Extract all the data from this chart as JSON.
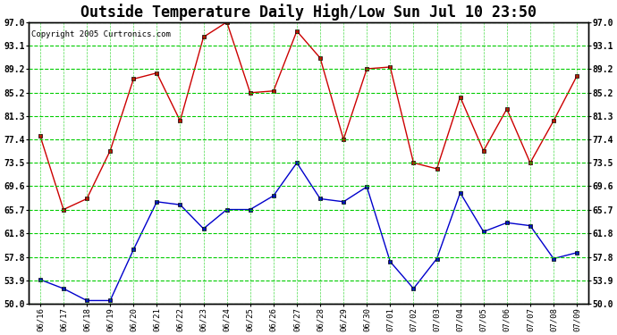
{
  "title": "Outside Temperature Daily High/Low Sun Jul 10 23:50",
  "copyright": "Copyright 2005 Curtronics.com",
  "x_labels": [
    "06/16",
    "06/17",
    "06/18",
    "06/19",
    "06/20",
    "06/21",
    "06/22",
    "06/23",
    "06/24",
    "06/25",
    "06/26",
    "06/27",
    "06/28",
    "06/29",
    "06/30",
    "07/01",
    "07/02",
    "07/03",
    "07/04",
    "07/05",
    "07/06",
    "07/07",
    "07/08",
    "07/09"
  ],
  "high_temps": [
    78.0,
    65.7,
    67.5,
    75.5,
    87.5,
    88.5,
    80.5,
    94.5,
    97.0,
    85.2,
    85.5,
    95.5,
    91.0,
    77.4,
    89.2,
    89.5,
    73.5,
    72.5,
    84.5,
    75.5,
    82.5,
    73.5,
    80.5,
    88.0
  ],
  "low_temps": [
    54.0,
    52.5,
    50.5,
    50.5,
    59.0,
    67.0,
    66.5,
    62.5,
    65.7,
    65.7,
    68.0,
    73.5,
    67.5,
    67.0,
    69.5,
    57.0,
    52.5,
    57.5,
    68.5,
    62.0,
    63.5,
    63.0,
    57.5,
    58.5
  ],
  "high_color": "#cc0000",
  "low_color": "#0000cc",
  "bg_color": "#ffffff",
  "plot_bg_color": "#ffffff",
  "grid_color": "#00cc00",
  "yticks": [
    50.0,
    53.9,
    57.8,
    61.8,
    65.7,
    69.6,
    73.5,
    77.4,
    81.3,
    85.2,
    89.2,
    93.1,
    97.0
  ],
  "ylim": [
    50.0,
    97.0
  ],
  "title_fontsize": 12
}
